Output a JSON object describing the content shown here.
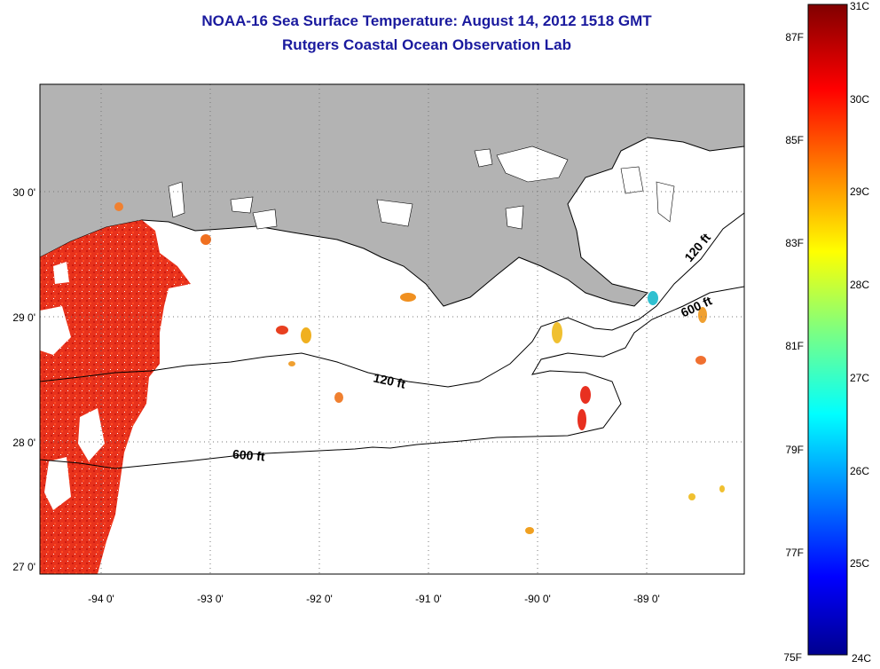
{
  "title_line1": "NOAA-16 Sea Surface Temperature:  August 14, 2012 1518 GMT",
  "title_line2": "Rutgers Coastal Ocean Observation Lab",
  "map": {
    "lon_labels": [
      "-94 0'",
      "-93 0'",
      "-92 0'",
      "-91 0'",
      "-90 0'",
      "-89 0'"
    ],
    "lat_labels": [
      "27 0'",
      "28 0'",
      "29 0'",
      "30 0'"
    ],
    "contour_labels": [
      {
        "text": "120 ft",
        "id": "contour-120-west"
      },
      {
        "text": "600 ft",
        "id": "contour-600-west"
      },
      {
        "text": "120 ft",
        "id": "contour-120-east"
      },
      {
        "text": "600 ft",
        "id": "contour-600-east"
      }
    ],
    "colors": {
      "land": "#b3b3b3",
      "ocean_nodata": "#ffffff",
      "warm_water": "#e62814"
    }
  },
  "colorbar": {
    "celsius_labels": [
      "31C",
      "30C",
      "29C",
      "28C",
      "27C",
      "26C",
      "25C",
      "24C"
    ],
    "fahrenheit_labels": [
      "87F",
      "85F",
      "83F",
      "81F",
      "79F",
      "77F",
      "75F"
    ],
    "range_c": [
      24,
      31
    ],
    "colormap": "jet"
  }
}
